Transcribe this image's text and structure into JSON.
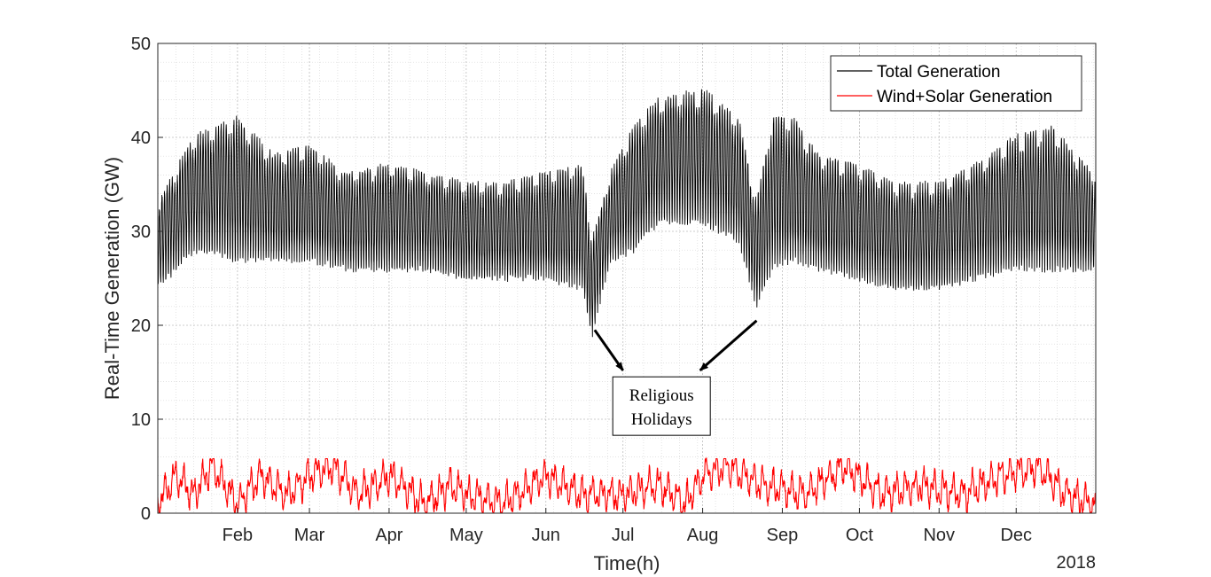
{
  "chart_data": {
    "type": "line",
    "xlabel": "Time(h)",
    "ylabel": "Real-Time Generation (GW)",
    "year_label": "2018",
    "x_range": [
      "2018-01-01T00:00",
      "2018-12-31T23:00"
    ],
    "x_ticks": [
      {
        "date": "2018-02-01",
        "label": "Feb"
      },
      {
        "date": "2018-03-01",
        "label": "Mar"
      },
      {
        "date": "2018-04-01",
        "label": "Apr"
      },
      {
        "date": "2018-05-01",
        "label": "May"
      },
      {
        "date": "2018-06-01",
        "label": "Jun"
      },
      {
        "date": "2018-07-01",
        "label": "Jul"
      },
      {
        "date": "2018-08-01",
        "label": "Aug"
      },
      {
        "date": "2018-09-01",
        "label": "Sep"
      },
      {
        "date": "2018-10-01",
        "label": "Oct"
      },
      {
        "date": "2018-11-01",
        "label": "Nov"
      },
      {
        "date": "2018-12-01",
        "label": "Dec"
      }
    ],
    "ylim": [
      0,
      50
    ],
    "y_ticks": [
      0,
      10,
      20,
      30,
      40,
      50
    ],
    "grid": true,
    "minor_grid": true,
    "legend_position": "top-right",
    "series": [
      {
        "name": "Total Generation",
        "color": "#000000",
        "kind": "daily-range",
        "daily_max_ref": [
          [
            "2018-01-01",
            33
          ],
          [
            "2018-01-15",
            40
          ],
          [
            "2018-02-01",
            42
          ],
          [
            "2018-02-15",
            38
          ],
          [
            "2018-03-01",
            39
          ],
          [
            "2018-03-15",
            36
          ],
          [
            "2018-04-01",
            37
          ],
          [
            "2018-04-15",
            36
          ],
          [
            "2018-05-01",
            35
          ],
          [
            "2018-05-15",
            35
          ],
          [
            "2018-06-01",
            36
          ],
          [
            "2018-06-15",
            37
          ],
          [
            "2018-06-19",
            29
          ],
          [
            "2018-06-26",
            36
          ],
          [
            "2018-07-05",
            41
          ],
          [
            "2018-07-15",
            44
          ],
          [
            "2018-08-01",
            45
          ],
          [
            "2018-08-15",
            42
          ],
          [
            "2018-08-22",
            33
          ],
          [
            "2018-08-28",
            42
          ],
          [
            "2018-09-05",
            42
          ],
          [
            "2018-09-15",
            38
          ],
          [
            "2018-10-01",
            37
          ],
          [
            "2018-10-15",
            35
          ],
          [
            "2018-11-01",
            35
          ],
          [
            "2018-11-15",
            37
          ],
          [
            "2018-12-01",
            40
          ],
          [
            "2018-12-15",
            41
          ],
          [
            "2018-12-31",
            36
          ]
        ],
        "daily_min_ref": [
          [
            "2018-01-01",
            24
          ],
          [
            "2018-01-15",
            28
          ],
          [
            "2018-02-01",
            27
          ],
          [
            "2018-02-15",
            27
          ],
          [
            "2018-03-01",
            27
          ],
          [
            "2018-03-15",
            26
          ],
          [
            "2018-04-01",
            26
          ],
          [
            "2018-04-15",
            26
          ],
          [
            "2018-05-01",
            25
          ],
          [
            "2018-05-15",
            25
          ],
          [
            "2018-06-01",
            25
          ],
          [
            "2018-06-15",
            24
          ],
          [
            "2018-06-19",
            19
          ],
          [
            "2018-06-26",
            27
          ],
          [
            "2018-07-05",
            28
          ],
          [
            "2018-07-15",
            31
          ],
          [
            "2018-08-01",
            31
          ],
          [
            "2018-08-15",
            29
          ],
          [
            "2018-08-22",
            22
          ],
          [
            "2018-08-28",
            26
          ],
          [
            "2018-09-05",
            27
          ],
          [
            "2018-09-15",
            26
          ],
          [
            "2018-10-01",
            25
          ],
          [
            "2018-10-15",
            24
          ],
          [
            "2018-11-01",
            24
          ],
          [
            "2018-11-15",
            25
          ],
          [
            "2018-12-01",
            26
          ],
          [
            "2018-12-15",
            26
          ],
          [
            "2018-12-31",
            26
          ]
        ]
      },
      {
        "name": "Wind+Solar Generation",
        "color": "#ff0000",
        "kind": "line",
        "ref": [
          [
            "2018-01-01",
            1
          ],
          [
            "2018-01-08",
            4
          ],
          [
            "2018-01-15",
            2
          ],
          [
            "2018-01-22",
            5
          ],
          [
            "2018-02-01",
            1
          ],
          [
            "2018-02-10",
            4
          ],
          [
            "2018-02-20",
            2
          ],
          [
            "2018-03-01",
            4
          ],
          [
            "2018-03-10",
            5
          ],
          [
            "2018-03-20",
            2
          ],
          [
            "2018-04-01",
            4
          ],
          [
            "2018-04-15",
            1
          ],
          [
            "2018-04-25",
            3
          ],
          [
            "2018-05-01",
            2
          ],
          [
            "2018-05-15",
            1
          ],
          [
            "2018-06-01",
            4
          ],
          [
            "2018-06-15",
            2
          ],
          [
            "2018-07-01",
            2
          ],
          [
            "2018-07-15",
            3
          ],
          [
            "2018-07-25",
            1
          ],
          [
            "2018-08-01",
            4
          ],
          [
            "2018-08-10",
            5
          ],
          [
            "2018-08-25",
            3
          ],
          [
            "2018-09-10",
            2
          ],
          [
            "2018-09-25",
            5
          ],
          [
            "2018-10-10",
            2
          ],
          [
            "2018-10-25",
            3
          ],
          [
            "2018-11-10",
            2
          ],
          [
            "2018-11-25",
            4
          ],
          [
            "2018-12-10",
            5
          ],
          [
            "2018-12-20",
            2
          ],
          [
            "2018-12-31",
            1
          ]
        ]
      }
    ],
    "annotation": {
      "lines": [
        "Religious",
        "Holidays"
      ],
      "arrow_from": [
        [
          "2018-06-20",
          19.5
        ],
        [
          "2018-08-22",
          20.5
        ]
      ],
      "arrow_to": [
        [
          "2018-07-01",
          15.2
        ],
        [
          "2018-07-31",
          15.2
        ]
      ],
      "box_center": [
        "2018-07-16",
        11.4
      ]
    }
  }
}
